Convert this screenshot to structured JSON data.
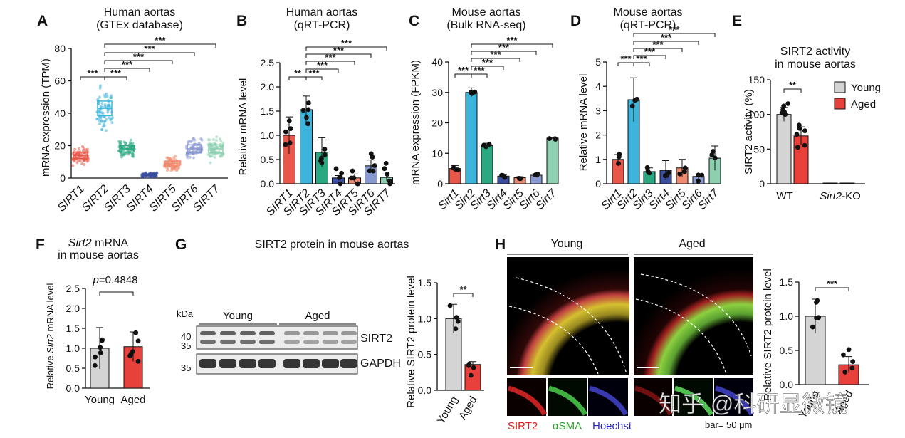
{
  "panelA": {
    "letter": "A",
    "title1": "Human aortas",
    "title2": "(GTEx database)",
    "ylabel": "mRNA expression (TPM)",
    "yticks": [
      "0",
      "20",
      "40",
      "60",
      "80"
    ],
    "categories": [
      "SIRT1",
      "SIRT2",
      "SIRT3",
      "SIRT4",
      "SIRT5",
      "SIRT6",
      "SIRT7"
    ],
    "colors": [
      "#e8574a",
      "#3cb4dc",
      "#2aa882",
      "#3a4fa0",
      "#f08a6e",
      "#8898d0",
      "#8cd0b0"
    ],
    "sig": "***"
  },
  "panelB": {
    "letter": "B",
    "title1": "Human aortas",
    "title2": "(qRT-PCR)",
    "ylabel": "Relative mRNA level",
    "yticks": [
      "0.0",
      "0.5",
      "1.0",
      "1.5",
      "2.0",
      "2.5"
    ],
    "categories": [
      "SIRT1",
      "SIRT2",
      "SIRT3",
      "SIRT4",
      "SIRT5",
      "SIRT6",
      "SIRT7"
    ],
    "sig2": "**",
    "sig3": "***"
  },
  "panelC": {
    "letter": "C",
    "title1": "Mouse aortas",
    "title2": "(Bulk RNA-seq)",
    "ylabel": "mRNA expression (FPKM)",
    "yticks": [
      "0",
      "10",
      "20",
      "30",
      "40"
    ],
    "categories": [
      "Sirt1",
      "Sirt2",
      "Sirt3",
      "Sirt4",
      "Sirt5",
      "Sirt6",
      "Sirt7"
    ],
    "sig": "***"
  },
  "panelD": {
    "letter": "D",
    "title1": "Mouse aortas",
    "title2": "(qRT-PCR)",
    "ylabel": "Relative mRNA level",
    "yticks": [
      "0",
      "1",
      "2",
      "3",
      "4",
      "5"
    ],
    "categories": [
      "Sirt1",
      "Sirt2",
      "Sirt3",
      "Sirt4",
      "Sirt5",
      "Sirt6",
      "Sirt7"
    ],
    "sig": "***"
  },
  "panelE": {
    "letter": "E",
    "title1": "SIRT2 activity",
    "title2": "in mouse aortas",
    "ylabel": "SIRT2 activity (%)",
    "yticks": [
      "0",
      "50",
      "100",
      "150"
    ],
    "groups": [
      "WT",
      "Sirt2",
      "-KO"
    ],
    "legend": [
      "Young",
      "Aged"
    ],
    "sig": "**"
  },
  "panelF": {
    "letter": "F",
    "title1a": "Sirt2",
    "title1b": " mRNA",
    "title2": "in mouse aortas",
    "ylabel1": "Relative ",
    "ylabel2": "Sirt2",
    "ylabel3": " mRNA level",
    "yticks": [
      "0.0",
      "0.5",
      "1.0",
      "1.5",
      "2.0",
      "2.5"
    ],
    "categories": [
      "Young",
      "Aged"
    ],
    "pvalue": "=0.4848",
    "p": "p"
  },
  "panelG": {
    "letter": "G",
    "title": "SIRT2 protein in mouse aortas",
    "kda": "kDa",
    "young": "Young",
    "aged": "Aged",
    "mw": [
      "40",
      "35",
      "35"
    ],
    "bands": [
      "SIRT2",
      "GAPDH"
    ],
    "ylabel": "Relative SIRT2 protein level",
    "yticks": [
      "0.0",
      "0.5",
      "1.0",
      "1.5"
    ],
    "categories": [
      "Young",
      "Aged"
    ],
    "sig": "**"
  },
  "panelH": {
    "letter": "H",
    "young": "Young",
    "aged": "Aged",
    "stains": [
      "SIRT2",
      "αSMA",
      "Hoechst"
    ],
    "scalebar": "bar= 50 μm",
    "ylabel": "Relative SIRT2 protein level",
    "yticks": [
      "0.0",
      "0.5",
      "1.0",
      "1.5"
    ],
    "categories": [
      "Young",
      "Aged"
    ],
    "sig": "***",
    "watermark": "知乎 @科研显微镜"
  },
  "chart_data": [
    {
      "panel": "A",
      "type": "scatter",
      "title": "Human aortas (GTEx database)",
      "ylabel": "mRNA expression (TPM)",
      "ylim": [
        0,
        80
      ],
      "categories": [
        "SIRT1",
        "SIRT2",
        "SIRT3",
        "SIRT4",
        "SIRT5",
        "SIRT6",
        "SIRT7"
      ],
      "values": [
        14,
        43,
        18,
        2,
        9,
        18,
        18
      ]
    },
    {
      "panel": "B",
      "type": "bar",
      "title": "Human aortas (qRT-PCR)",
      "ylabel": "Relative mRNA level",
      "ylim": [
        0,
        2.5
      ],
      "categories": [
        "SIRT1",
        "SIRT2",
        "SIRT3",
        "SIRT4",
        "SIRT5",
        "SIRT6",
        "SIRT7"
      ],
      "values": [
        1.0,
        1.53,
        0.65,
        0.12,
        0.12,
        0.37,
        0.13
      ],
      "errors": [
        0.38,
        0.28,
        0.3,
        0.05,
        0.08,
        0.12,
        0.07
      ]
    },
    {
      "panel": "C",
      "type": "bar",
      "title": "Mouse aortas (Bulk RNA-seq)",
      "ylabel": "mRNA expression (FPKM)",
      "ylim": [
        0,
        40
      ],
      "categories": [
        "Sirt1",
        "Sirt2",
        "Sirt3",
        "Sirt4",
        "Sirt5",
        "Sirt6",
        "Sirt7"
      ],
      "values": [
        5,
        30,
        12.5,
        2.5,
        2,
        2.8,
        15
      ],
      "errors": [
        1,
        1.5,
        0.8,
        0.5,
        0.3,
        0.4,
        0.3
      ]
    },
    {
      "panel": "D",
      "type": "bar",
      "title": "Mouse aortas (qRT-PCR)",
      "ylabel": "Relative mRNA level",
      "ylim": [
        0,
        5
      ],
      "categories": [
        "Sirt1",
        "Sirt2",
        "Sirt3",
        "Sirt4",
        "Sirt5",
        "Sirt6",
        "Sirt7"
      ],
      "values": [
        1,
        3.45,
        0.5,
        0.55,
        0.65,
        0.3,
        1.05
      ],
      "errors": [
        0.2,
        0.9,
        0.15,
        0.4,
        0.35,
        0.1,
        0.5
      ]
    },
    {
      "panel": "E",
      "type": "bar",
      "title": "SIRT2 activity in mouse aortas",
      "ylabel": "SIRT2 activity (%)",
      "ylim": [
        0,
        150
      ],
      "groups": [
        "WT",
        "Sirt2-KO"
      ],
      "series": [
        {
          "name": "Young",
          "values": [
            100,
            1
          ]
        },
        {
          "name": "Aged",
          "values": [
            69,
            1
          ]
        }
      ]
    },
    {
      "panel": "F",
      "type": "bar",
      "title": "Sirt2 mRNA in mouse aortas",
      "ylabel": "Relative Sirt2 mRNA level",
      "ylim": [
        0,
        2.5
      ],
      "categories": [
        "Young",
        "Aged"
      ],
      "values": [
        1.0,
        1.04
      ],
      "errors": [
        0.52,
        0.37
      ]
    },
    {
      "panel": "G",
      "type": "bar",
      "title": "SIRT2 protein in mouse aortas",
      "ylabel": "Relative SIRT2 protein level",
      "ylim": [
        0,
        1.5
      ],
      "categories": [
        "Young",
        "Aged"
      ],
      "values": [
        1.0,
        0.36
      ],
      "errors": [
        0.2,
        0.04
      ]
    },
    {
      "panel": "H",
      "type": "bar",
      "ylabel": "Relative SIRT2 protein level",
      "ylim": [
        0,
        1.5
      ],
      "categories": [
        "Young",
        "Aged"
      ],
      "values": [
        1.0,
        0.29
      ],
      "errors": [
        0.25,
        0.12
      ]
    }
  ]
}
